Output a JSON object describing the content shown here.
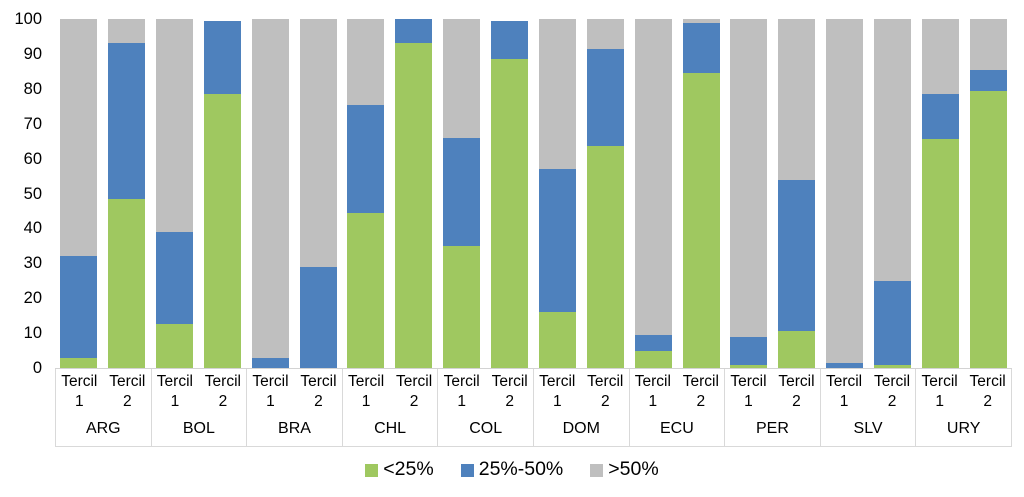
{
  "chart_data": {
    "type": "bar",
    "stacked": true,
    "percent_stacked": true,
    "title": "",
    "xlabel": "",
    "ylabel": "",
    "ylim": [
      0,
      100
    ],
    "yticks": [
      0,
      10,
      20,
      30,
      40,
      50,
      60,
      70,
      80,
      90,
      100
    ],
    "grid": false,
    "legend_position": "bottom",
    "groups": [
      "ARG",
      "BOL",
      "BRA",
      "CHL",
      "COL",
      "DOM",
      "ECU",
      "PER",
      "SLV",
      "URY"
    ],
    "bar_labels": [
      [
        "Tercil",
        "1"
      ],
      [
        "Tercil",
        "2"
      ]
    ],
    "series": [
      {
        "name": "<25%",
        "color": "#9FC860",
        "values": [
          [
            3,
            48.5
          ],
          [
            12.5,
            78.5
          ],
          [
            0,
            0
          ],
          [
            44.5,
            93
          ],
          [
            35,
            88.5
          ],
          [
            16,
            63.5
          ],
          [
            5,
            84.5
          ],
          [
            1,
            10.5
          ],
          [
            0,
            1
          ],
          [
            65.5,
            79.5
          ]
        ]
      },
      {
        "name": "25%-50%",
        "color": "#4E81BD",
        "values": [
          [
            29,
            44.5
          ],
          [
            26.5,
            21
          ],
          [
            3,
            29
          ],
          [
            31,
            7
          ],
          [
            31,
            11
          ],
          [
            41,
            28
          ],
          [
            4.5,
            14.5
          ],
          [
            8,
            43.5
          ],
          [
            1.5,
            24
          ],
          [
            13,
            6
          ]
        ]
      },
      {
        "name": ">50%",
        "color": "#BFBFBF",
        "values": [
          [
            68,
            7
          ],
          [
            61,
            0
          ],
          [
            97,
            71
          ],
          [
            24.5,
            0
          ],
          [
            34,
            0
          ],
          [
            43,
            8.5
          ],
          [
            90.5,
            1
          ],
          [
            91,
            46
          ],
          [
            98.5,
            75
          ],
          [
            21.5,
            14.5
          ]
        ]
      }
    ]
  },
  "colors": {
    "separator": "#D9D9D9",
    "text": "#000000",
    "background": "#FFFFFF"
  }
}
